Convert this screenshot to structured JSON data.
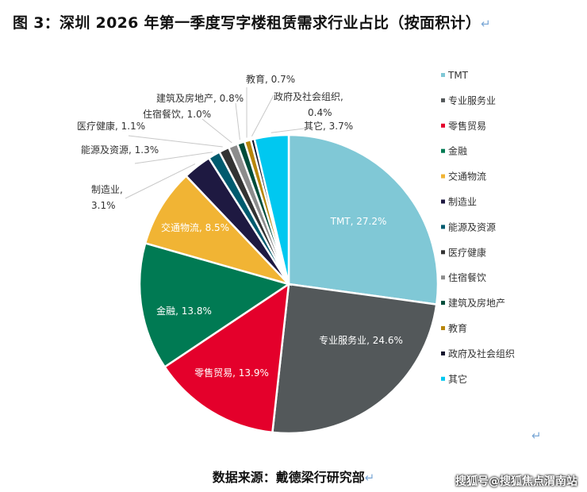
{
  "title": "图 3：深圳 2026 年第一季度写字楼租赁需求行业占比（按面积计）",
  "return_mark": "↵",
  "source": "数据来源：戴德梁行研究部",
  "watermark": "搜狐号@搜狐焦点渭南站",
  "chart_data": {
    "type": "pie",
    "title": "图 3：深圳 2026 年第一季度写字楼租赁需求行业占比（按面积计）",
    "unit": "%",
    "start": "top",
    "direction": "clockwise",
    "legend_position": "right",
    "slices": [
      {
        "name": "TMT",
        "value": 27.2,
        "label": "TMT, 27.2%",
        "color": "#80C8D6"
      },
      {
        "name": "专业服务业",
        "value": 24.6,
        "label": "专业服务业, 24.6%",
        "color": "#53585A"
      },
      {
        "name": "零售贸易",
        "value": 13.9,
        "label": "零售贸易, 13.9%",
        "color": "#E4002B"
      },
      {
        "name": "金融",
        "value": 13.8,
        "label": "金融, 13.8%",
        "color": "#007A53"
      },
      {
        "name": "交通物流",
        "value": 8.5,
        "label": "交通物流, 8.5%",
        "color": "#F1B434"
      },
      {
        "name": "制造业",
        "value": 3.1,
        "label": "制造业,|3.1%",
        "color": "#1E1941"
      },
      {
        "name": "能源及资源",
        "value": 1.3,
        "label": "能源及资源, 1.3%",
        "color": "#005A6E"
      },
      {
        "name": "医疗健康",
        "value": 1.1,
        "label": "医疗健康, 1.1%",
        "color": "#333333"
      },
      {
        "name": "住宿餐饮",
        "value": 1.0,
        "label": "住宿餐饮, 1.0%",
        "color": "#8C8C8C"
      },
      {
        "name": "建筑及房地产",
        "value": 0.8,
        "label": "建筑及房地产, 0.8%",
        "color": "#004C3A"
      },
      {
        "name": "教育",
        "value": 0.7,
        "label": "教育, 0.7%",
        "color": "#B8860B"
      },
      {
        "name": "政府及社会组织",
        "value": 0.4,
        "label": "政府及社会组织,|0.4%",
        "color": "#14142C"
      },
      {
        "name": "其它",
        "value": 3.7,
        "label": "其它, 3.7%",
        "color": "#00C8F0"
      }
    ]
  }
}
